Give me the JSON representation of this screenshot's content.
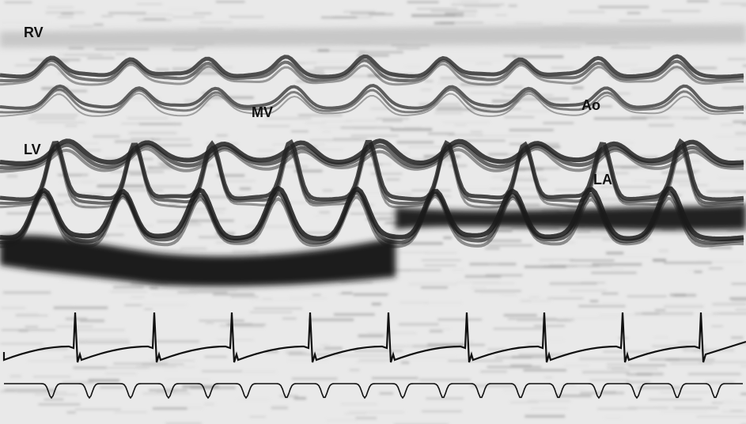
{
  "labels": [
    "RV",
    "LV",
    "MV",
    "Ao",
    "LA"
  ]
}
